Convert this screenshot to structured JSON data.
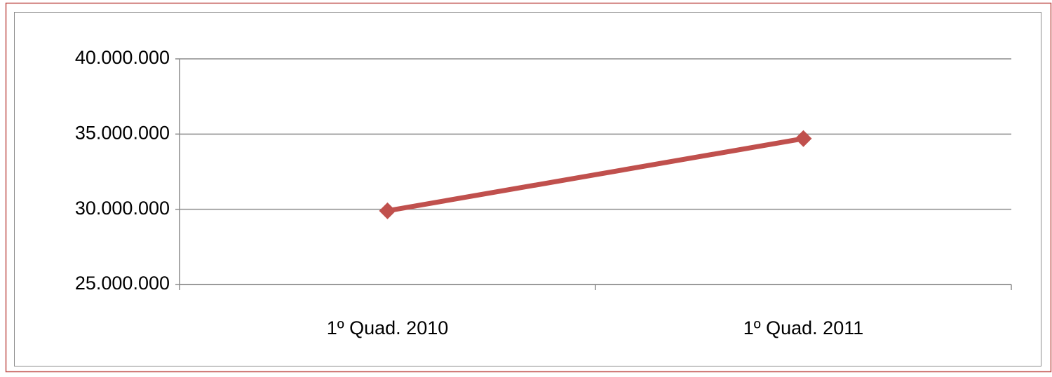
{
  "chart_data": {
    "type": "line",
    "categories": [
      "1º Quad. 2010",
      "1º Quad. 2011"
    ],
    "values": [
      29900000,
      34700000
    ],
    "color": "#c0504d",
    "ylim": [
      25000000,
      40000000
    ],
    "yticks": [
      {
        "value": 25000000,
        "label": "25.000.000"
      },
      {
        "value": 30000000,
        "label": "30.000.000"
      },
      {
        "value": 35000000,
        "label": "35.000.000"
      },
      {
        "value": 40000000,
        "label": "40.000.000"
      }
    ],
    "grid": true
  }
}
